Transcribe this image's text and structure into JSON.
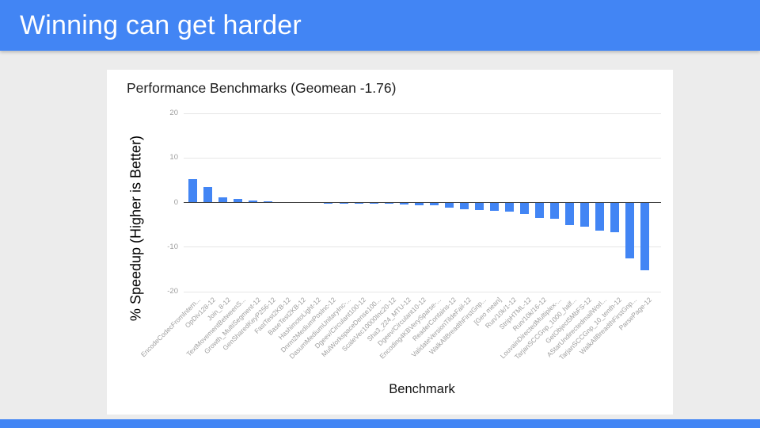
{
  "slide": {
    "title": "Winning can get harder"
  },
  "colors": {
    "header_bar": "#4285f4",
    "footer_bar": "#4285f4",
    "slide_background": "#ececec",
    "card_background": "#ffffff",
    "bar_color": "#4285f4",
    "axis_line": "#424242",
    "gridline": "#e6e6e6",
    "tick_text": "#9e9e9e"
  },
  "chart_data": {
    "type": "bar",
    "title": "Performance Benchmarks (Geomean -1.76)",
    "xlabel": "Benchmark",
    "ylabel": "% Speedup (Higher is Better)",
    "ylim": [
      -20,
      20
    ],
    "yticks": [
      20,
      10,
      0,
      -10,
      -20
    ],
    "grid": true,
    "legend_position": "none",
    "bar_color": "#4285f4",
    "geomean": -1.76,
    "categories": [
      "EncodeCodecFromIntern...",
      "OpDiv128-12",
      "Join_8-12",
      "TextMovementBetweenS...",
      "Growth_MultiSegment-12",
      "GenSharedKeyP256-12",
      "FastTest2KB-12",
      "BaseTest2KB-12",
      "HashimotoLight-12",
      "Dnrm2MediumPosInc-12",
      "DasumMediumUnitaryInc-...",
      "Dgeev/Circulant100-12",
      "MulWorkspaceDense100...",
      "ScaleVec10000Inc20-12",
      "Sha3_224_MTU-12",
      "Dgeev/Circulant10-12",
      "Encoding4KBVerySparse-...",
      "ReaderContains-12",
      "ValidateVersionTildeFail-12",
      "WalkAllBreadthFirstGnp...",
      "[Geo mean]",
      "Run/10k/1-12",
      "StripHTML-12",
      "Run/10k/16-12",
      "LouvainDirectedMultiplex-...",
      "TarjanSCCGnp_1000_half...",
      "GetObject5MbFS-12",
      "AStarUndirectedmailWorl...",
      "TarjanSCCGnp_10_tenth-12",
      "WalkAllBreadthFirstGnp...",
      "ParsePage-12"
    ],
    "values": [
      5.2,
      3.45,
      1.05,
      0.65,
      0.35,
      0.15,
      0.08,
      0.04,
      0,
      -0.03,
      -0.06,
      -0.1,
      -0.15,
      -0.25,
      -0.4,
      -0.45,
      -0.6,
      -1.0,
      -1.35,
      -1.65,
      -1.76,
      -1.95,
      -2.5,
      -3.4,
      -3.5,
      -5.0,
      -5.4,
      -6.3,
      -6.6,
      -12.5,
      -15.1
    ]
  }
}
